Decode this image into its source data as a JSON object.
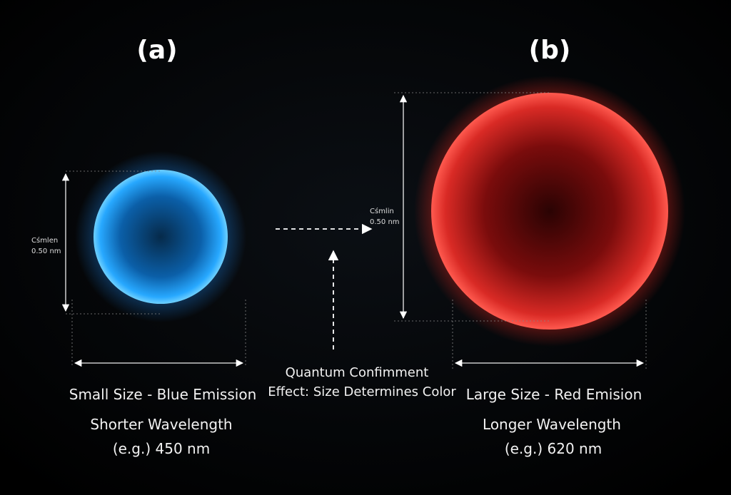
{
  "panel_a": {
    "label": "(a)",
    "size_note": [
      "Cśmlen",
      "0.50 nm"
    ],
    "caption": [
      "Small Size - Blue Emission",
      "Shorter Wavelength",
      "(e.g.) 450 nm"
    ]
  },
  "panel_b": {
    "label": "(b)",
    "size_note": [
      "Cśmlin",
      "0.50 nm"
    ],
    "caption": [
      "Large Size - Red Emision",
      "Longer Wavelength",
      "(e.g.) 620 nm"
    ]
  },
  "center": {
    "caption": [
      "Quantum Confimment",
      "Effect: Size Determines Color"
    ]
  }
}
